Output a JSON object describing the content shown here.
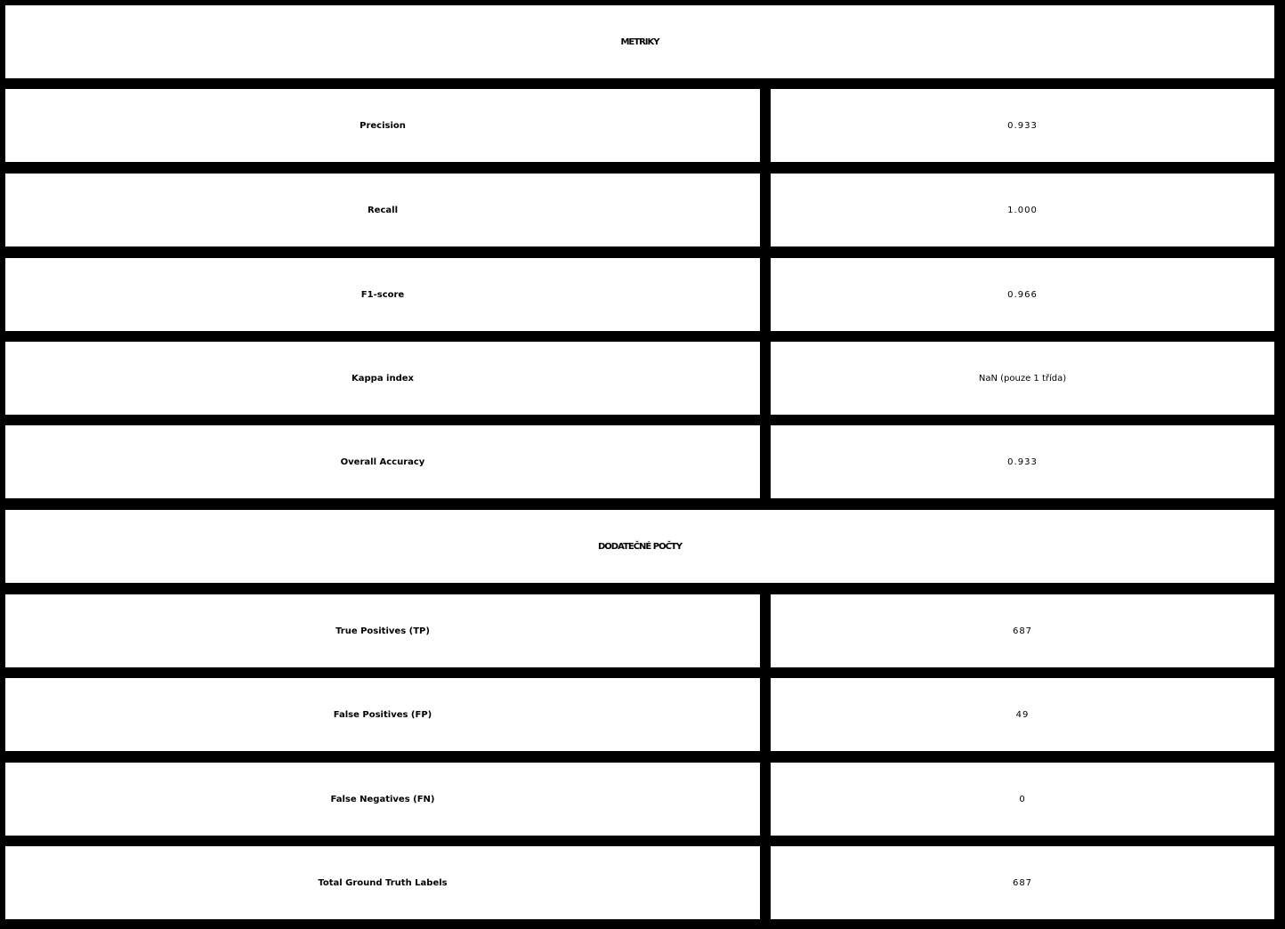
{
  "metrics_section": {
    "header": "METRIKY",
    "rows": [
      {
        "label": "Precision",
        "value": "0.933"
      },
      {
        "label": "Recall",
        "value": "1.000"
      },
      {
        "label": "F1-score",
        "value": "0.966"
      },
      {
        "label": "Kappa index",
        "value": "NaN (pouze 1 třída)"
      },
      {
        "label": "Overall Accuracy",
        "value": "0.933"
      }
    ]
  },
  "counts_section": {
    "header": "DODATEČNÉ POČTY",
    "rows": [
      {
        "label": "True Positives (TP)",
        "value": "687"
      },
      {
        "label": "False Positives (FP)",
        "value": "49"
      },
      {
        "label": "False Negatives (FN)",
        "value": "0"
      },
      {
        "label": "Total Ground Truth Labels",
        "value": "687"
      }
    ]
  },
  "colors": {
    "border": "#000000",
    "cell_background": "#ffffff",
    "text": "#000000"
  }
}
